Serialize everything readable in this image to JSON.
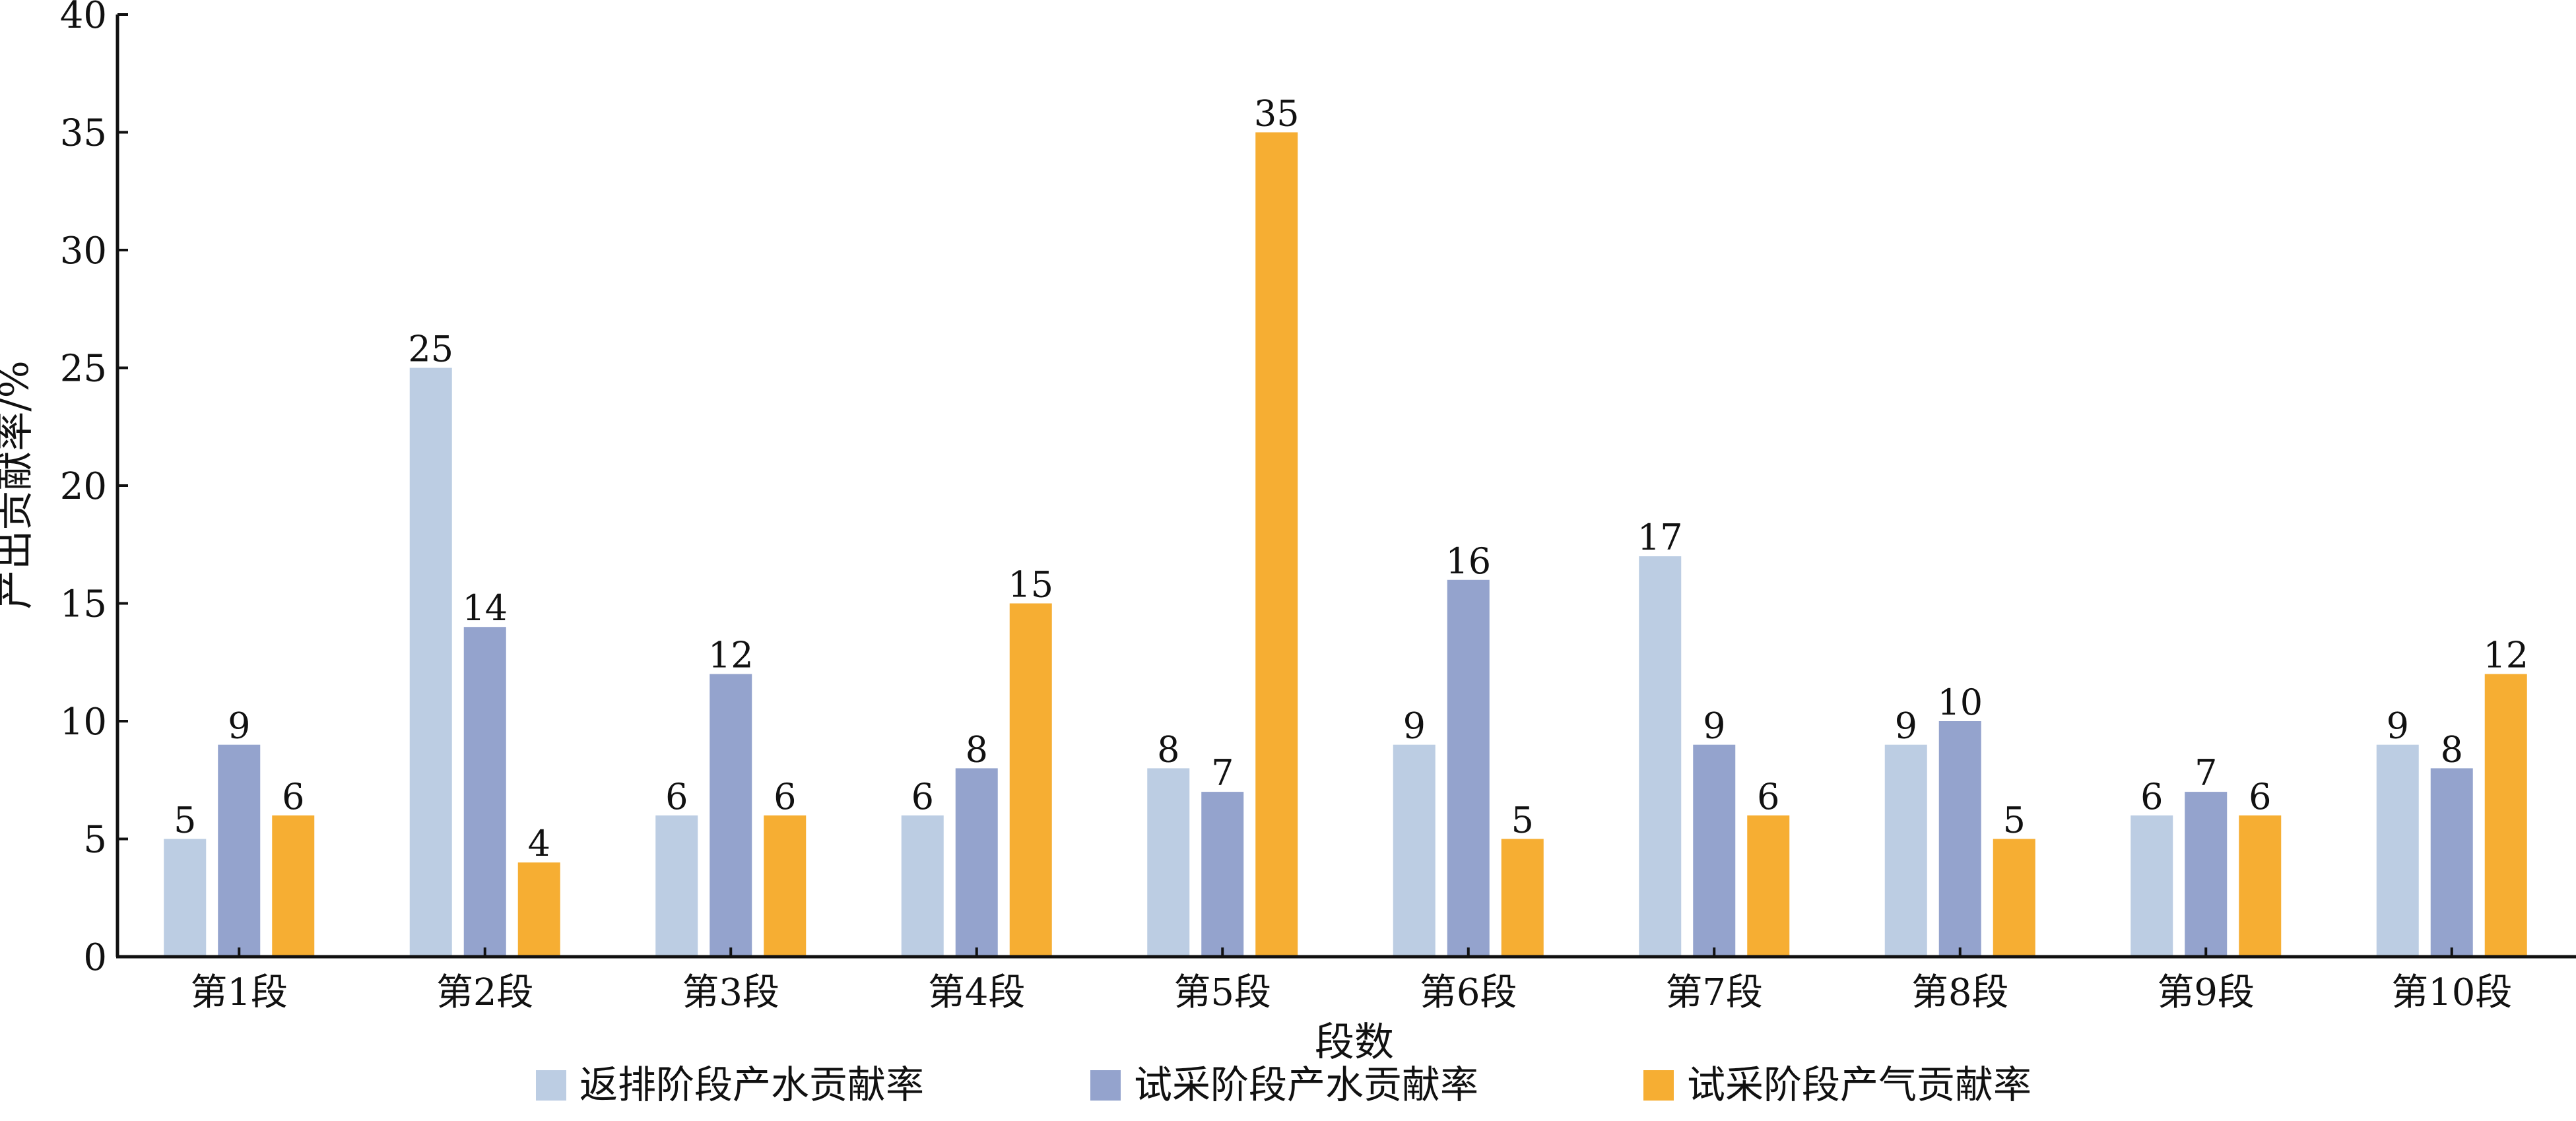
{
  "chart_data": {
    "type": "bar",
    "title": "",
    "xlabel": "段数",
    "ylabel": "产出贡献率/%",
    "ylim": [
      0,
      40
    ],
    "yticks": [
      "0",
      "5",
      "10",
      "15",
      "20",
      "25",
      "30",
      "35",
      "40"
    ],
    "categories": [
      "第1段",
      "第2段",
      "第3段",
      "第4段",
      "第5段",
      "第6段",
      "第7段",
      "第8段",
      "第9段",
      "第10段"
    ],
    "series": [
      {
        "name": "返排阶段产水贡献率",
        "color": "#bccde3",
        "values": [
          5,
          25,
          6,
          6,
          8,
          9,
          17,
          9,
          6,
          9
        ]
      },
      {
        "name": "试采阶段产水贡献率",
        "color": "#94a3cd",
        "values": [
          9,
          14,
          12,
          8,
          7,
          16,
          9,
          10,
          7,
          8
        ]
      },
      {
        "name": "试采阶段产气贡献率",
        "color": "#f6ae33",
        "values": [
          6,
          4,
          6,
          15,
          35,
          5,
          6,
          5,
          6,
          12
        ]
      }
    ],
    "grid": false,
    "data_labels": true,
    "legend_position": "bottom"
  }
}
